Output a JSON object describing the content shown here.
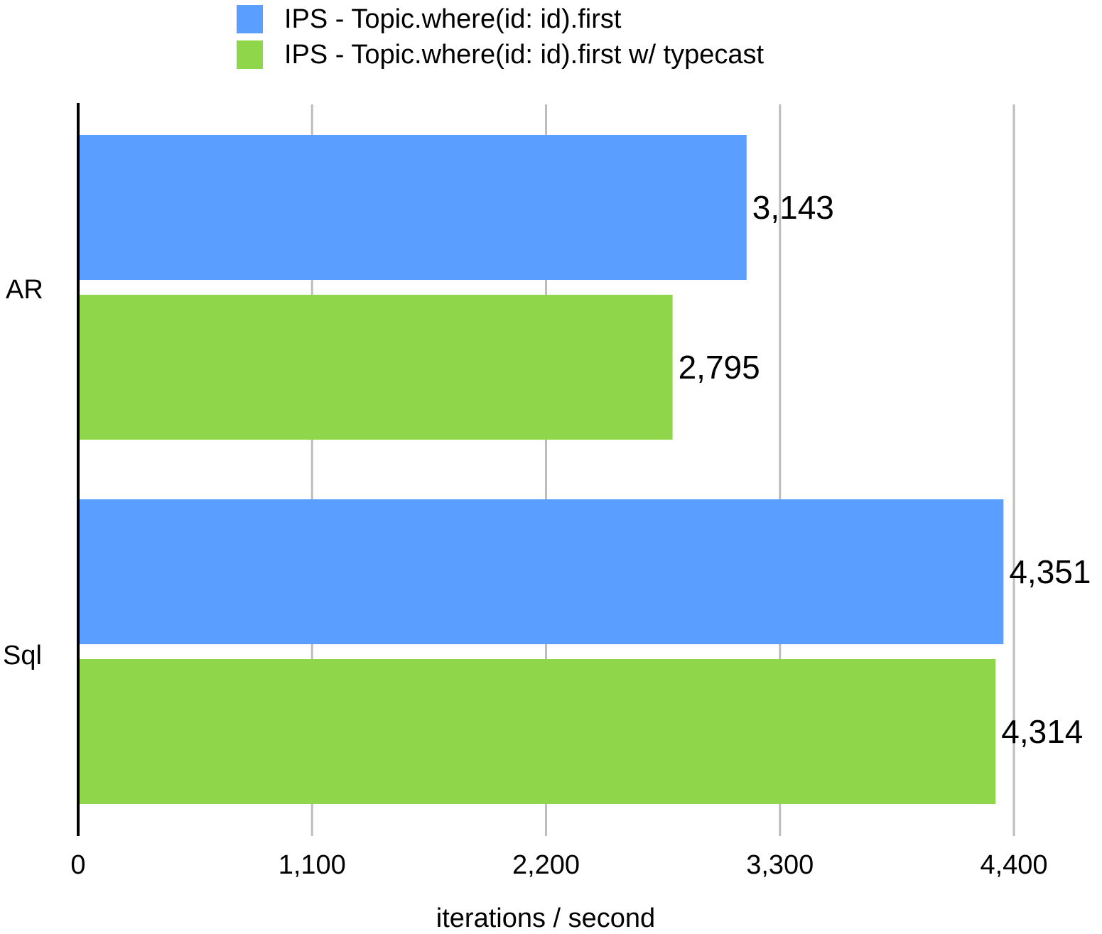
{
  "chart_data": {
    "type": "bar",
    "orientation": "horizontal",
    "categories": [
      "AR",
      "Sql"
    ],
    "series": [
      {
        "name": "IPS - Topic.where(id: id).first",
        "color": "#5a9fff",
        "values": [
          3143,
          4351
        ],
        "value_labels": [
          "3,143",
          "4,351"
        ]
      },
      {
        "name": "IPS - Topic.where(id: id).first w/ typecast",
        "color": "#8fd64b",
        "values": [
          2795,
          4314
        ],
        "value_labels": [
          "2,795",
          "4,314"
        ]
      }
    ],
    "xlabel": "iterations / second",
    "xlim": [
      0,
      4400
    ],
    "xticks": [
      0,
      1100,
      2200,
      3300,
      4400
    ],
    "xtick_labels": [
      "0",
      "1,100",
      "2,200",
      "3,300",
      "4,400"
    ],
    "grid": true,
    "legend_position": "top"
  }
}
